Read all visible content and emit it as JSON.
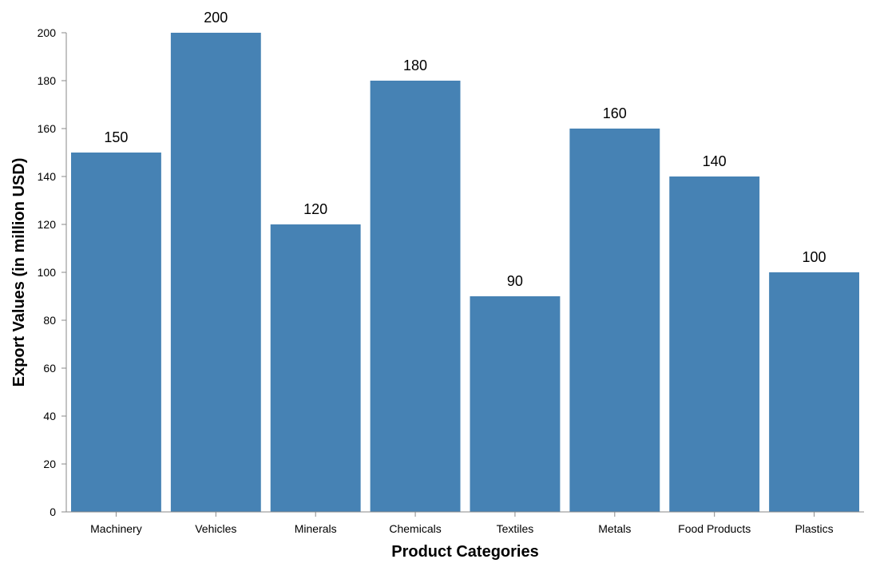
{
  "chart_data": {
    "type": "bar",
    "categories": [
      "Machinery",
      "Vehicles",
      "Minerals",
      "Chemicals",
      "Textiles",
      "Metals",
      "Food Products",
      "Plastics"
    ],
    "values": [
      150,
      200,
      120,
      180,
      90,
      160,
      140,
      100
    ],
    "title": "",
    "xlabel": "Product Categories",
    "ylabel": "Export Values (in million USD)",
    "ylim": [
      0,
      200
    ],
    "yticks": [
      0,
      20,
      40,
      60,
      80,
      100,
      120,
      140,
      160,
      180,
      200
    ],
    "grid": false,
    "legend": "none",
    "data_labels": true,
    "bar_color": "#4682b4"
  }
}
